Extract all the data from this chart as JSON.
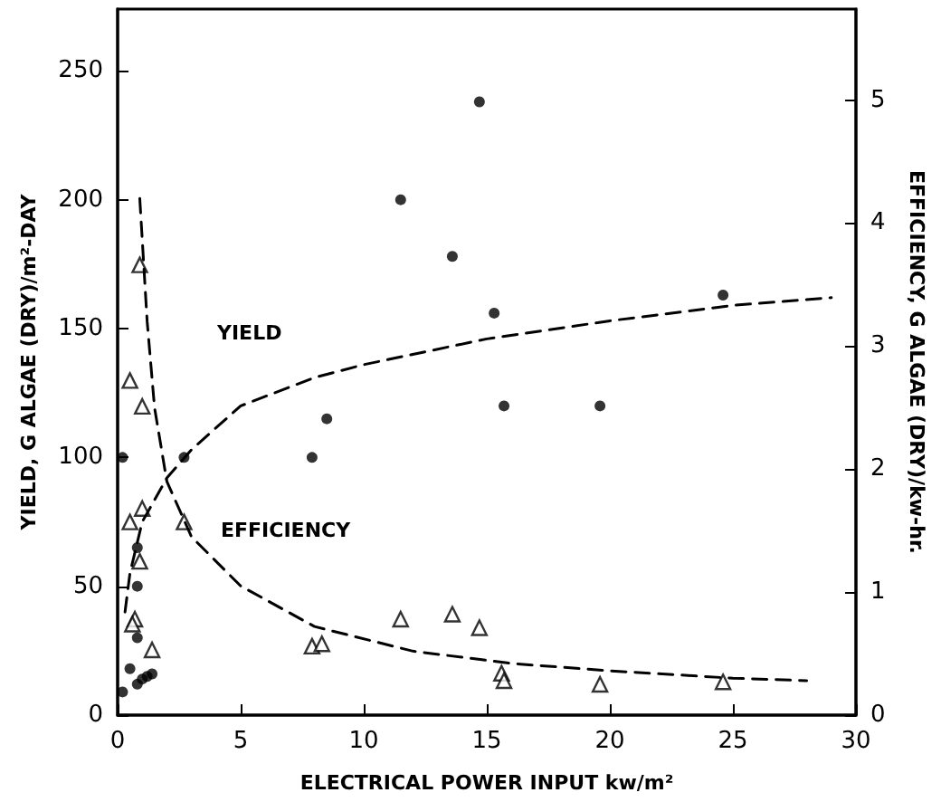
{
  "chart_data": {
    "type": "scatter",
    "xlabel": "ELECTRICAL POWER INPUT kw/m²",
    "ylabel": "YIELD, G ALGAE (DRY)/m²-DAY",
    "y2label": "EFFICIENCY, G ALGAE (DRY)/kw-hr.",
    "xlim": [
      0,
      30
    ],
    "xticks": [
      0,
      5,
      10,
      15,
      20,
      25,
      30
    ],
    "ylim": [
      0,
      274
    ],
    "yticks": [
      0,
      50,
      100,
      150,
      200,
      250
    ],
    "y2lim": [
      0,
      5.74
    ],
    "y2ticks": [
      0,
      1,
      2,
      3,
      4,
      5
    ],
    "grid": false,
    "annotations": [
      "YIELD",
      "EFFICIENCY"
    ],
    "series": [
      {
        "marker": "circle",
        "color": "#000000",
        "x": [
          0.2,
          0.5,
          0.8,
          1.0,
          1.2,
          1.4,
          0.8,
          0.8,
          0.8,
          0.2,
          2.7,
          7.9,
          8.5,
          11.5,
          13.6,
          14.7,
          15.3,
          15.7,
          19.6,
          24.6
        ],
        "values": [
          9,
          18,
          12,
          14,
          15,
          16,
          30,
          50,
          65,
          100,
          100,
          100,
          115,
          200,
          178,
          238,
          156,
          120,
          120,
          163
        ]
      },
      {
        "marker": "triangle",
        "color": "#000000",
        "axis": "y2",
        "x": [
          0.9,
          0.5,
          1.0,
          0.5,
          1.0,
          0.9,
          0.7,
          0.6,
          1.4,
          2.7,
          7.9,
          8.3,
          11.5,
          13.6,
          14.7,
          15.6,
          15.7,
          19.6,
          24.6
        ],
        "values": [
          3.66,
          2.72,
          2.51,
          1.57,
          1.68,
          1.25,
          0.78,
          0.74,
          0.53,
          1.57,
          0.56,
          0.58,
          0.78,
          0.82,
          0.71,
          0.34,
          0.28,
          0.25,
          0.27
        ]
      },
      {
        "type": "line",
        "marker": "none",
        "line_style": "dashed",
        "color": "#000000",
        "x": [
          0.3,
          0.5,
          1,
          2,
          3,
          5,
          8,
          10,
          15,
          20,
          25,
          29
        ],
        "values": [
          40,
          55,
          75,
          92,
          103,
          120,
          131,
          136,
          146,
          153,
          159,
          162
        ]
      },
      {
        "type": "line",
        "marker": "none",
        "line_style": "dashed",
        "color": "#000000",
        "axis": "y2",
        "x": [
          0.9,
          1.2,
          1.5,
          2,
          3,
          5,
          8,
          12,
          16,
          20,
          25,
          28
        ],
        "values": [
          4.2,
          3.2,
          2.5,
          1.9,
          1.45,
          1.05,
          0.72,
          0.52,
          0.42,
          0.36,
          0.3,
          0.28
        ]
      }
    ]
  }
}
